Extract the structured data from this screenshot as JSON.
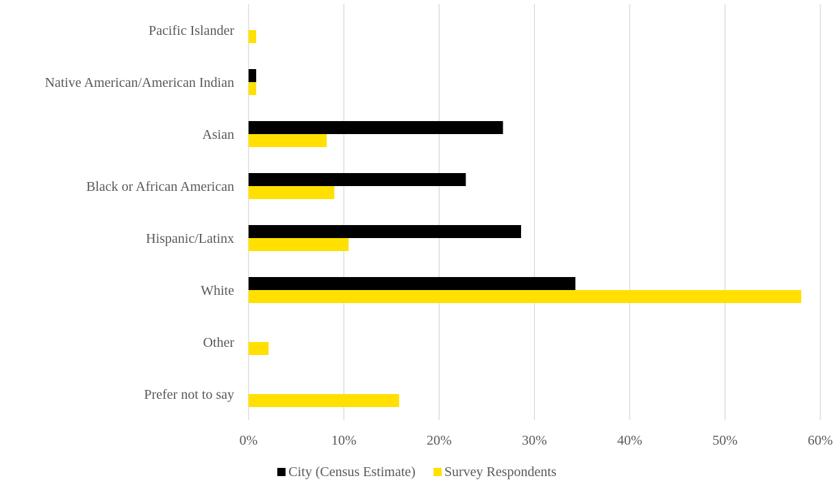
{
  "chart_data": {
    "type": "bar",
    "orientation": "horizontal",
    "categories": [
      "Pacific Islander",
      "Native American/American Indian",
      "Asian",
      "Black or African American",
      "Hispanic/Latinx",
      "White",
      "Other",
      "Prefer not to say"
    ],
    "series": [
      {
        "name": "City (Census Estimate)",
        "color": "#000000",
        "values": [
          0,
          0.8,
          26.7,
          22.8,
          28.6,
          34.3,
          0,
          0
        ]
      },
      {
        "name": "Survey Respondents",
        "color": "#FFE000",
        "values": [
          0.8,
          0.8,
          8.2,
          9.0,
          10.5,
          58.0,
          2.1,
          15.8
        ]
      }
    ],
    "xlim": [
      0,
      60
    ],
    "xticks": [
      "0%",
      "10%",
      "20%",
      "30%",
      "40%",
      "50%",
      "60%"
    ],
    "grid": true,
    "legend_position": "bottom"
  }
}
